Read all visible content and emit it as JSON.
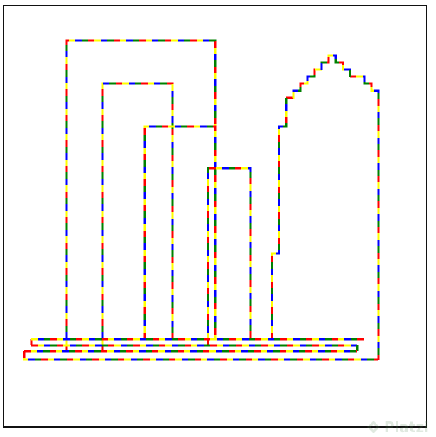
{
  "canvas": {
    "background": "#ffffff",
    "border_color": "#111111"
  },
  "dash_palette": [
    "#ff0000",
    "#ffff00",
    "#0000ff",
    "#008000"
  ],
  "shapes": [
    {
      "name": "outer-arch-line",
      "kind": "arch"
    },
    {
      "name": "second-arch-line",
      "kind": "arch"
    },
    {
      "name": "third-arch-line",
      "kind": "arch"
    },
    {
      "name": "fourth-arch-line",
      "kind": "arch"
    },
    {
      "name": "stepped-tower-line",
      "kind": "tower"
    },
    {
      "name": "ground-line-top",
      "kind": "ground"
    },
    {
      "name": "ground-line-middle",
      "kind": "ground"
    },
    {
      "name": "ground-line-lower",
      "kind": "ground"
    },
    {
      "name": "ground-line-bottom",
      "kind": "ground"
    }
  ],
  "watermark": {
    "text": "Platzi",
    "icon": "platzi-logo-icon"
  }
}
